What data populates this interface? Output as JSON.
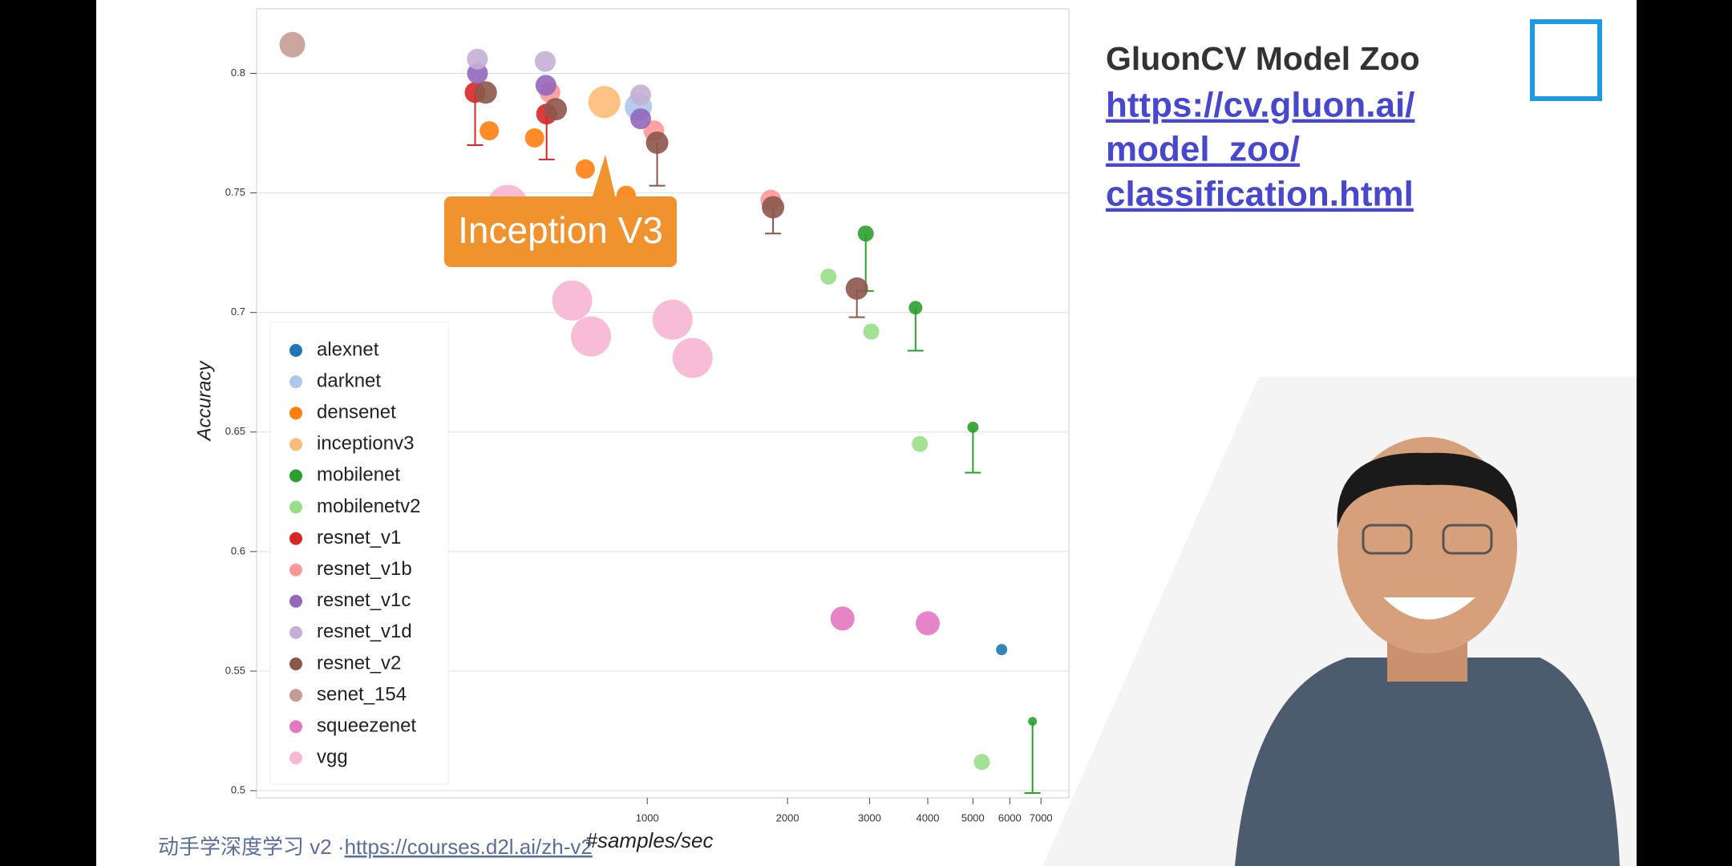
{
  "chart_data": {
    "type": "scatter",
    "xscale": "log",
    "grid": true,
    "legend": "left",
    "xlabel": "#samples/sec",
    "ylabel": "Accuracy",
    "xlim": [
      145,
      8035
    ],
    "ylim": [
      0.497,
      0.827
    ],
    "xticks": [
      1000,
      2000,
      3000,
      4000,
      5000,
      6000,
      7000
    ],
    "yticks": [
      0.5,
      0.55,
      0.6,
      0.65,
      0.7,
      0.75,
      0.8
    ],
    "annotation": {
      "text": "Inception V3",
      "series": 3,
      "point": 0
    },
    "series": [
      {
        "name": "alexnet",
        "color": "#1f77b4",
        "x": [
          5764
        ],
        "values": [
          0.559
        ],
        "errors": [
          null
        ]
      },
      {
        "name": "darknet",
        "color": "#aec7e8",
        "x": [
          957
        ],
        "values": [
          0.786
        ],
        "errors": [
          null
        ]
      },
      {
        "name": "densenet",
        "color": "#ff7f0e",
        "x": [
          458,
          573,
          736,
          901
        ],
        "values": [
          0.776,
          0.773,
          0.76,
          0.749
        ],
        "errors": [
          null,
          null,
          null,
          null
        ]
      },
      {
        "name": "inceptionv3",
        "color": "#ffbb78",
        "x": [
          809
        ],
        "values": [
          0.788
        ],
        "errors": [
          null
        ]
      },
      {
        "name": "mobilenet",
        "color": "#2ca02c",
        "x": [
          2944,
          3766,
          5002,
          6714
        ],
        "values": [
          0.733,
          0.702,
          0.652,
          0.529
        ],
        "errors": [
          0.024,
          0.018,
          0.019,
          0.03
        ]
      },
      {
        "name": "mobilenetv2",
        "color": "#98df8a",
        "x": [
          2449,
          3025,
          3847,
          5226
        ],
        "values": [
          0.715,
          0.692,
          0.645,
          0.512
        ],
        "errors": [
          null,
          null,
          null,
          null
        ]
      },
      {
        "name": "resnet_v1",
        "color": "#d62728",
        "x": [
          427,
          608
        ],
        "values": [
          0.792,
          0.783
        ],
        "errors": [
          0.022,
          0.019
        ]
      },
      {
        "name": "resnet_v1b",
        "color": "#ff9896",
        "x": [
          618,
          1033,
          1842
        ],
        "values": [
          0.792,
          0.776,
          0.747
        ],
        "errors": [
          null,
          null,
          null
        ]
      },
      {
        "name": "resnet_v1c",
        "color": "#9467bd",
        "x": [
          432,
          606,
          968
        ],
        "values": [
          0.8,
          0.795,
          0.781
        ],
        "errors": [
          null,
          null,
          null
        ]
      },
      {
        "name": "resnet_v1d",
        "color": "#c5b0d5",
        "x": [
          432,
          604,
          968
        ],
        "values": [
          0.806,
          0.805,
          0.791
        ],
        "errors": [
          null,
          null,
          null
        ]
      },
      {
        "name": "resnet_v2",
        "color": "#8c564b",
        "x": [
          450,
          636,
          1050,
          1862,
          2818
        ],
        "values": [
          0.792,
          0.785,
          0.771,
          0.744,
          0.71
        ],
        "errors": [
          null,
          null,
          0.018,
          0.011,
          0.012
        ]
      },
      {
        "name": "senet_154",
        "color": "#c49c94",
        "x": [
          173
        ],
        "values": [
          0.812
        ],
        "errors": [
          null
        ]
      },
      {
        "name": "squeezenet",
        "color": "#e377c2",
        "x": [
          2625,
          4000
        ],
        "values": [
          0.572,
          0.57
        ],
        "errors": [
          null,
          null
        ]
      },
      {
        "name": "vgg",
        "color": "#f7b6d2",
        "x": [
          502,
          690,
          757,
          1133,
          1251
        ],
        "values": [
          0.745,
          0.705,
          0.69,
          0.697,
          0.681
        ],
        "errors": [
          null,
          null,
          null,
          null,
          null
        ]
      }
    ]
  },
  "slide": {
    "title": "GluonCV Model Zoo",
    "link_lines": [
      "https://cv.gluon.ai/",
      "model_zoo/",
      "classification.html"
    ]
  },
  "footer": {
    "text": "动手学深度学习 v2 · ",
    "link": "https://courses.d2l.ai/zh-v2"
  }
}
